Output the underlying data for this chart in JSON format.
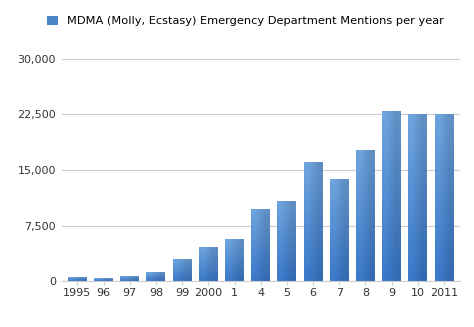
{
  "title": "MDMA (Molly, Ecstasy) Emergency Department Mentions per year",
  "legend_label": "MDMA (Molly, Ecstasy) Emergency Department Mentions per year",
  "categories": [
    "1995",
    "96",
    "97",
    "98",
    "99",
    "2000",
    "1",
    "4",
    "5",
    "6",
    "7",
    "8",
    "9",
    "10",
    "2011"
  ],
  "values": [
    421,
    319,
    637,
    1143,
    2850,
    4511,
    5542,
    9641,
    10752,
    16051,
    13687,
    17551,
    22816,
    22498,
    22498
  ],
  "bar_color_dark": "#3a78c9",
  "bar_color_light": "#85b8e8",
  "background_color": "#ffffff",
  "grid_color": "#cccccc",
  "ylim": [
    0,
    30000
  ],
  "yticks": [
    0,
    7500,
    15000,
    22500,
    30000
  ],
  "ytick_labels": [
    "0",
    "7,500",
    "15,000",
    "22,500",
    "30,000"
  ],
  "title_fontsize": 9.5,
  "tick_fontsize": 8.0,
  "legend_box_color": "#4a86c8",
  "axis_color": "#cccccc"
}
